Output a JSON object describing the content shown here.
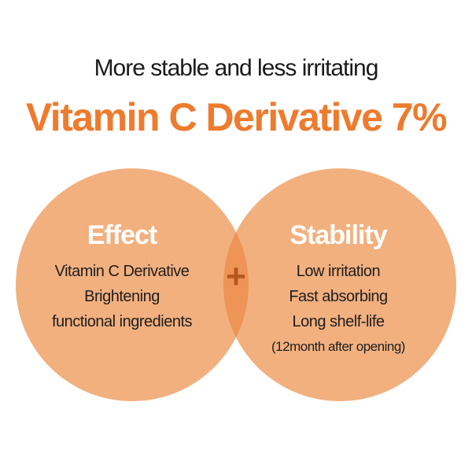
{
  "subtitle": "More stable and less irritating",
  "title": "Vitamin C Derivative 7%",
  "colors": {
    "title": "#ee7b2e",
    "circle": "#f2b07f",
    "overlap": "#ee9456",
    "plus": "#b8561f"
  },
  "left": {
    "heading": "Effect",
    "lines": [
      "Vitamin C Derivative",
      "Brightening",
      "functional ingredients"
    ]
  },
  "right": {
    "heading": "Stability",
    "lines": [
      "Low irritation",
      "Fast absorbing",
      "Long shelf-life"
    ],
    "note": "(12month after opening)"
  },
  "plus_icon": "plus-icon",
  "plus": "+"
}
